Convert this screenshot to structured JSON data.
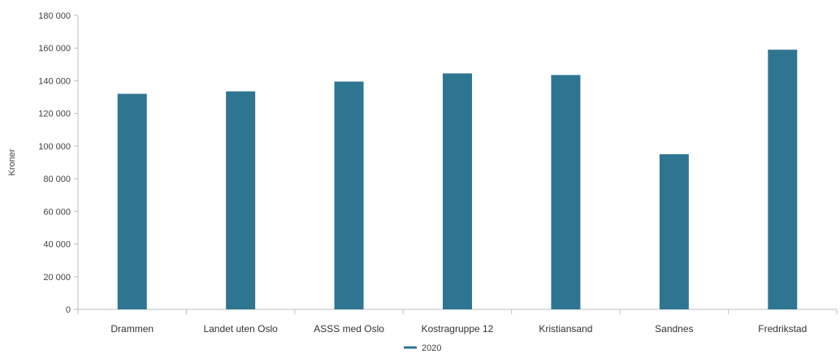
{
  "chart_data": {
    "type": "bar",
    "ylabel": "Kroner",
    "ylim": [
      0,
      180000
    ],
    "yticks": [
      0,
      20000,
      40000,
      60000,
      80000,
      100000,
      120000,
      140000,
      160000,
      180000
    ],
    "ytick_labels": [
      "0",
      "20 000",
      "40 000",
      "60 000",
      "80 000",
      "100 000",
      "120 000",
      "140 000",
      "160 000",
      "180 000"
    ],
    "categories": [
      "Drammen",
      "Landet uten Oslo",
      "ASSS med Oslo",
      "Kostragruppe 12",
      "Kristiansand",
      "Sandnes",
      "Fredrikstad"
    ],
    "series": [
      {
        "name": "2020",
        "color": "#2e7591",
        "values": [
          132000,
          133500,
          139500,
          144500,
          143500,
          95000,
          159000
        ]
      }
    ],
    "grid": false,
    "legend": "bottom-center"
  }
}
